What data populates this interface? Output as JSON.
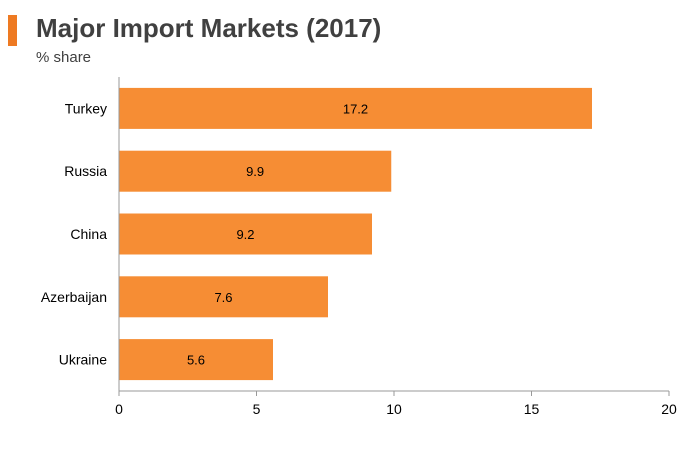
{
  "header": {
    "title": "Major Import Markets (2017)",
    "subtitle": "% share",
    "accent_color": "#ee7a22"
  },
  "chart_data": {
    "type": "bar",
    "orientation": "horizontal",
    "categories": [
      "Turkey",
      "Russia",
      "China",
      "Azerbaijan",
      "Ukraine"
    ],
    "values": [
      17.2,
      9.9,
      9.2,
      7.6,
      5.6
    ],
    "xlim": [
      0,
      20
    ],
    "xticks": [
      0,
      5,
      10,
      15,
      20
    ],
    "bar_color": "#f68d34",
    "data_labels": true,
    "grid": false
  }
}
